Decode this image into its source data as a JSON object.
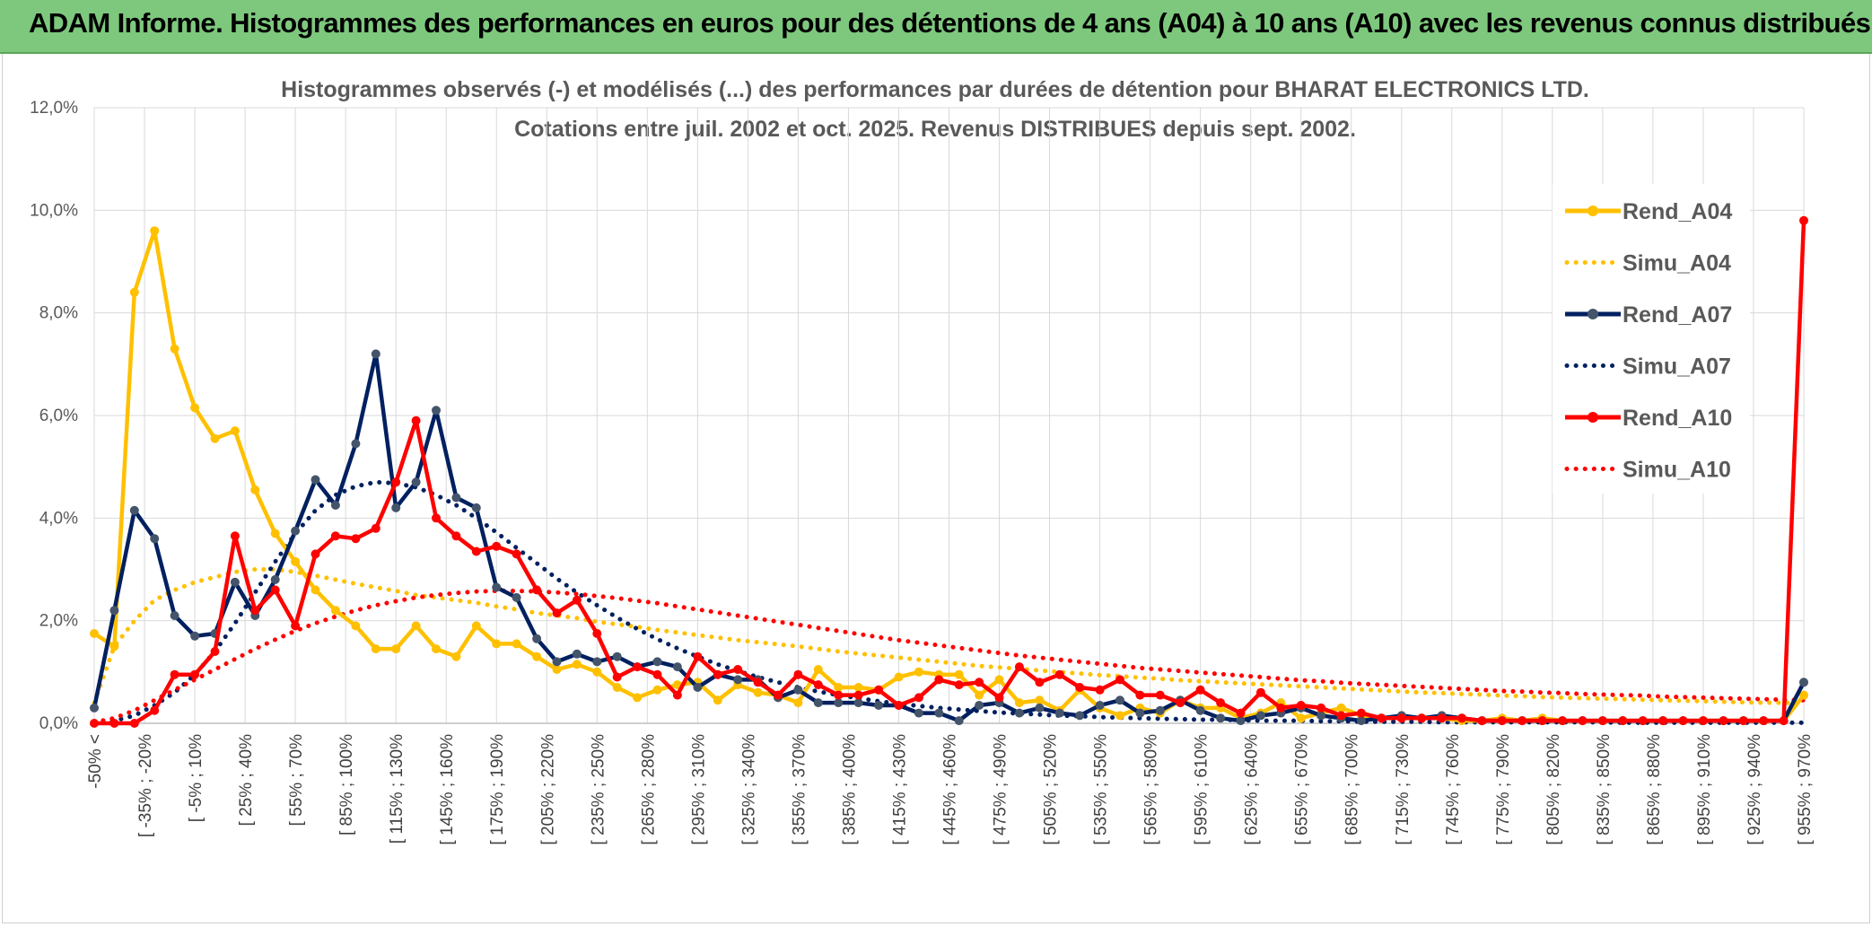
{
  "header": {
    "title": "ADAM Informe. Histogrammes des performances en euros pour des détentions de 4 ans (A04) à 10 ans (A10) avec les revenus connus distribués"
  },
  "chart_data": {
    "type": "line",
    "title": "Histogrammes observés (-) et modélisés (...) des performances par durées de détention pour BHARAT ELECTRONICS LTD.",
    "subtitle": "Cotations entre juil. 2002 et oct. 2025. Revenus DISTRIBUES depuis sept. 2002.",
    "xlabel": "",
    "ylabel": "",
    "ylim": [
      0,
      12
    ],
    "yticks": [
      "0,0%",
      "2,0%",
      "4,0%",
      "6,0%",
      "8,0%",
      "10,0%",
      "12,0%"
    ],
    "grid": true,
    "legend_position": "right",
    "x_tick_labels": [
      "-50% <",
      "[ -35% ; -20%",
      "[ -5% ; 10%",
      "[ 25% ; 40%",
      "[ 55% ; 70%",
      "[ 85% ; 100%",
      "[ 115% ; 130%",
      "[ 145% ; 160%",
      "[ 175% ; 190%",
      "[ 205% ; 220%",
      "[ 235% ; 250%",
      "[ 265% ; 280%",
      "[ 295% ; 310%",
      "[ 325% ; 340%",
      "[ 355% ; 370%",
      "[ 385% ; 400%",
      "[ 415% ; 430%",
      "[ 445% ; 460%",
      "[ 475% ; 490%",
      "[ 505% ; 520%",
      "[ 535% ; 550%",
      "[ 565% ; 580%",
      "[ 595% ; 610%",
      "[ 625% ; 640%",
      "[ 655% ; 670%",
      "[ 685% ; 700%",
      "[ 715% ; 730%",
      "[ 745% ; 760%",
      "[ 775% ; 790%",
      "[ 805% ; 820%",
      "[ 835% ; 850%",
      "[ 865% ; 880%",
      "[ 895% ; 910%",
      "[ 925% ; 940%",
      "[ 955% ; 970%"
    ],
    "series": [
      {
        "name": "Rend_A04",
        "style": "solid",
        "color": "#ffc000",
        "values": [
          1.75,
          1.5,
          8.4,
          9.6,
          7.3,
          6.15,
          5.55,
          5.7,
          4.55,
          3.7,
          3.15,
          2.6,
          2.2,
          1.9,
          1.45,
          1.45,
          1.9,
          1.45,
          1.3,
          1.9,
          1.55,
          1.55,
          1.3,
          1.05,
          1.15,
          1.0,
          0.7,
          0.5,
          0.65,
          0.75,
          0.8,
          0.45,
          0.75,
          0.6,
          0.55,
          0.4,
          1.05,
          0.7,
          0.7,
          0.65,
          0.9,
          1.0,
          0.95,
          0.95,
          0.55,
          0.85,
          0.4,
          0.45,
          0.25,
          0.65,
          0.3,
          0.15,
          0.3,
          0.2,
          0.45,
          0.3,
          0.3,
          0.1,
          0.2,
          0.4,
          0.1,
          0.2,
          0.3,
          0.15,
          0.1,
          0.1,
          0.1,
          0.1,
          0.05,
          0.05,
          0.1,
          0.05,
          0.1,
          0.05,
          0.05,
          0.05,
          0.05,
          0.05,
          0.05,
          0.05,
          0.05,
          0.05,
          0.05,
          0.05,
          0.05,
          0.55
        ]
      },
      {
        "name": "Simu_A04",
        "style": "dotted",
        "color": "#ffc000",
        "values": [
          0.4,
          1.5,
          2.0,
          2.4,
          2.6,
          2.75,
          2.85,
          2.95,
          3.0,
          3.0,
          2.95,
          2.88,
          2.8,
          2.72,
          2.65,
          2.58,
          2.5,
          2.45,
          2.4,
          2.35,
          2.28,
          2.22,
          2.15,
          2.1,
          2.05,
          1.98,
          1.93,
          1.88,
          1.82,
          1.77,
          1.72,
          1.67,
          1.62,
          1.58,
          1.54,
          1.5,
          1.45,
          1.4,
          1.36,
          1.32,
          1.28,
          1.24,
          1.2,
          1.16,
          1.12,
          1.09,
          1.06,
          1.03,
          1.0,
          0.97,
          0.94,
          0.92,
          0.89,
          0.87,
          0.84,
          0.82,
          0.8,
          0.78,
          0.76,
          0.74,
          0.72,
          0.7,
          0.68,
          0.66,
          0.64,
          0.62,
          0.6,
          0.59,
          0.57,
          0.56,
          0.54,
          0.53,
          0.51,
          0.5,
          0.49,
          0.48,
          0.47,
          0.46,
          0.45,
          0.44,
          0.43,
          0.42,
          0.41,
          0.4,
          0.4,
          0.39
        ]
      },
      {
        "name": "Rend_A07",
        "style": "solid",
        "color": "#002060",
        "values": [
          0.3,
          2.2,
          4.15,
          3.6,
          2.1,
          1.7,
          1.75,
          2.75,
          2.1,
          2.8,
          3.75,
          4.75,
          4.25,
          5.45,
          7.2,
          4.2,
          4.7,
          6.1,
          4.4,
          4.2,
          2.65,
          2.45,
          1.65,
          1.2,
          1.35,
          1.2,
          1.3,
          1.1,
          1.2,
          1.1,
          0.7,
          0.95,
          0.85,
          0.85,
          0.5,
          0.65,
          0.4,
          0.4,
          0.4,
          0.35,
          0.35,
          0.2,
          0.2,
          0.05,
          0.35,
          0.4,
          0.2,
          0.3,
          0.2,
          0.15,
          0.35,
          0.45,
          0.2,
          0.25,
          0.45,
          0.25,
          0.1,
          0.05,
          0.15,
          0.2,
          0.3,
          0.15,
          0.1,
          0.05,
          0.1,
          0.15,
          0.1,
          0.15,
          0.1,
          0.05,
          0.05,
          0.05,
          0.05,
          0.05,
          0.05,
          0.05,
          0.05,
          0.05,
          0.05,
          0.05,
          0.05,
          0.05,
          0.05,
          0.05,
          0.05,
          0.8
        ]
      },
      {
        "name": "Simu_A07",
        "style": "dotted",
        "color": "#002060",
        "values": [
          0.0,
          0.05,
          0.15,
          0.35,
          0.6,
          0.95,
          1.4,
          1.95,
          2.55,
          3.15,
          3.7,
          4.15,
          4.45,
          4.62,
          4.7,
          4.68,
          4.6,
          4.45,
          4.25,
          4.0,
          3.72,
          3.42,
          3.12,
          2.82,
          2.55,
          2.3,
          2.06,
          1.84,
          1.64,
          1.46,
          1.3,
          1.15,
          1.02,
          0.9,
          0.8,
          0.7,
          0.62,
          0.55,
          0.49,
          0.43,
          0.38,
          0.34,
          0.3,
          0.27,
          0.24,
          0.21,
          0.19,
          0.17,
          0.15,
          0.14,
          0.12,
          0.11,
          0.1,
          0.09,
          0.08,
          0.07,
          0.07,
          0.06,
          0.05,
          0.05,
          0.05,
          0.04,
          0.04,
          0.03,
          0.03,
          0.03,
          0.03,
          0.02,
          0.02,
          0.02,
          0.02,
          0.02,
          0.02,
          0.02,
          0.02,
          0.02,
          0.01,
          0.01,
          0.01,
          0.01,
          0.01,
          0.01,
          0.01,
          0.01,
          0.01,
          0.01
        ]
      },
      {
        "name": "Rend_A10",
        "style": "solid",
        "color": "#ff0000",
        "values": [
          0.0,
          0.0,
          0.0,
          0.25,
          0.95,
          0.95,
          1.4,
          3.65,
          2.2,
          2.6,
          1.9,
          3.3,
          3.65,
          3.6,
          3.8,
          4.7,
          5.9,
          4.0,
          3.65,
          3.35,
          3.45,
          3.3,
          2.6,
          2.15,
          2.4,
          1.75,
          0.9,
          1.1,
          0.95,
          0.55,
          1.3,
          0.95,
          1.05,
          0.8,
          0.55,
          0.95,
          0.75,
          0.55,
          0.55,
          0.65,
          0.35,
          0.5,
          0.85,
          0.75,
          0.8,
          0.5,
          1.1,
          0.8,
          0.95,
          0.7,
          0.65,
          0.85,
          0.55,
          0.55,
          0.4,
          0.65,
          0.4,
          0.2,
          0.6,
          0.3,
          0.35,
          0.3,
          0.15,
          0.2,
          0.1,
          0.1,
          0.1,
          0.1,
          0.1,
          0.05,
          0.05,
          0.05,
          0.05,
          0.05,
          0.05,
          0.05,
          0.05,
          0.05,
          0.05,
          0.05,
          0.05,
          0.05,
          0.05,
          0.05,
          0.05,
          9.8
        ]
      },
      {
        "name": "Simu_A10",
        "style": "dotted",
        "color": "#ff0000",
        "values": [
          0.02,
          0.1,
          0.25,
          0.45,
          0.65,
          0.85,
          1.05,
          1.25,
          1.45,
          1.63,
          1.8,
          1.95,
          2.08,
          2.2,
          2.3,
          2.38,
          2.45,
          2.5,
          2.54,
          2.57,
          2.58,
          2.58,
          2.57,
          2.55,
          2.52,
          2.48,
          2.44,
          2.39,
          2.34,
          2.28,
          2.22,
          2.16,
          2.1,
          2.04,
          1.98,
          1.92,
          1.86,
          1.8,
          1.74,
          1.68,
          1.62,
          1.57,
          1.52,
          1.47,
          1.42,
          1.37,
          1.32,
          1.28,
          1.24,
          1.2,
          1.16,
          1.12,
          1.08,
          1.05,
          1.02,
          0.99,
          0.96,
          0.93,
          0.9,
          0.87,
          0.84,
          0.82,
          0.79,
          0.77,
          0.75,
          0.73,
          0.71,
          0.69,
          0.67,
          0.65,
          0.63,
          0.62,
          0.6,
          0.59,
          0.57,
          0.56,
          0.55,
          0.54,
          0.52,
          0.51,
          0.5,
          0.49,
          0.48,
          0.47,
          0.46,
          0.45
        ]
      }
    ]
  }
}
